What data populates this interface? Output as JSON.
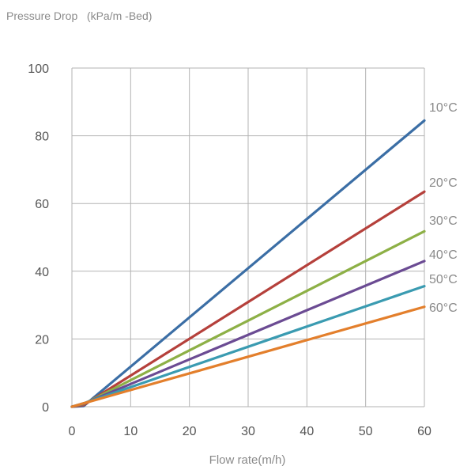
{
  "chart_data": {
    "type": "line",
    "title": "Pressure Drop   (kPa/m -Bed)",
    "xlabel": "Flow rate(m/h)",
    "ylabel": "",
    "xlim": [
      0,
      60
    ],
    "ylim": [
      0,
      100
    ],
    "x_ticks": [
      0,
      10,
      20,
      30,
      40,
      50,
      60
    ],
    "y_ticks": [
      0,
      20,
      40,
      60,
      80,
      100
    ],
    "grid": true,
    "legend": "right-end labels",
    "series": [
      {
        "name": "10°C",
        "color": "#3b6ea5",
        "x": [
          0,
          2,
          60
        ],
        "y": [
          0,
          0.2,
          84.5
        ]
      },
      {
        "name": "20°C",
        "color": "#b5403b",
        "x": [
          0,
          2,
          60
        ],
        "y": [
          0,
          0.5,
          63.5
        ]
      },
      {
        "name": "30°C",
        "color": "#8db046",
        "x": [
          0,
          2,
          60
        ],
        "y": [
          0,
          0.8,
          51.8
        ]
      },
      {
        "name": "40°C",
        "color": "#6b4b93",
        "x": [
          0,
          2,
          60
        ],
        "y": [
          0,
          0.9,
          43
        ]
      },
      {
        "name": "50°C",
        "color": "#3a9bb1",
        "x": [
          0,
          2,
          60
        ],
        "y": [
          0,
          1.0,
          35.6
        ]
      },
      {
        "name": "60°C",
        "color": "#e37f2c",
        "x": [
          0,
          2,
          60
        ],
        "y": [
          0,
          1.0,
          29.5
        ]
      }
    ]
  }
}
